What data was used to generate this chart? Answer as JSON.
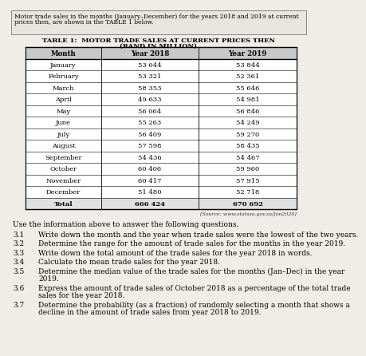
{
  "intro_text_line1": "Motor trade sales in the months (January–December) for the years 2018 and 2019 at current",
  "intro_text_line2": "prices then, are shown in the TABLE 1 below.",
  "title_line1": "TABLE 1:  MOTOR TRADE SALES AT CURRENT PRICES THEN",
  "title_line2": "(RAND IN MILLION)",
  "col_headers": [
    "Month",
    "Year 2018",
    "Year 2019"
  ],
  "months": [
    "January",
    "February",
    "March",
    "April",
    "May",
    "June",
    "July",
    "August",
    "September",
    "October",
    "November",
    "December",
    "Total"
  ],
  "year2018": [
    "53 044",
    "53 321",
    "58 353",
    "49 633",
    "56 064",
    "55 263",
    "56 409",
    "57 598",
    "54 436",
    "60 406",
    "60 417",
    "51 480",
    "666 424"
  ],
  "year2019": [
    "53 844",
    "52 361",
    "55 646",
    "54 981",
    "56 846",
    "54 249",
    "59 270",
    "58 435",
    "54 467",
    "59 960",
    "57 915",
    "52 718",
    "670 692"
  ],
  "source_text": "[Source: www.statssa.gov.za/Jan2020]",
  "questions": [
    {
      "num": "3.1",
      "text": "Write down the month and the year when trade sales were the lowest of the two years."
    },
    {
      "num": "3.2",
      "text": "Determine the range for the amount of trade sales for the months in the year 2019."
    },
    {
      "num": "3.3",
      "text": "Write down the total amount of the trade sales for the year 2018 in words."
    },
    {
      "num": "3.4",
      "text": "Calculate the mean trade sales for the year 2018."
    },
    {
      "num": "3.5",
      "text": "Determine the median value of the trade sales for the months (Jan–Dec) in the year\n2019."
    },
    {
      "num": "3.6",
      "text": "Express the amount of trade sales of October 2018 as a percentage of the total trade\nsales for the year 2018."
    },
    {
      "num": "3.7",
      "text": "Determine the probability (as a fraction) of randomly selecting a month that shows a\ndecline in the amount of trade sales from year 2018 to 2019."
    }
  ],
  "use_text": "Use the information above to answer the following questions.",
  "bg_color": "#f0ede8",
  "intro_box_color": "#e8e4de",
  "table_bg": "#ffffff",
  "header_bg": "#c8c8c8",
  "total_bg": "#e0e0e0"
}
